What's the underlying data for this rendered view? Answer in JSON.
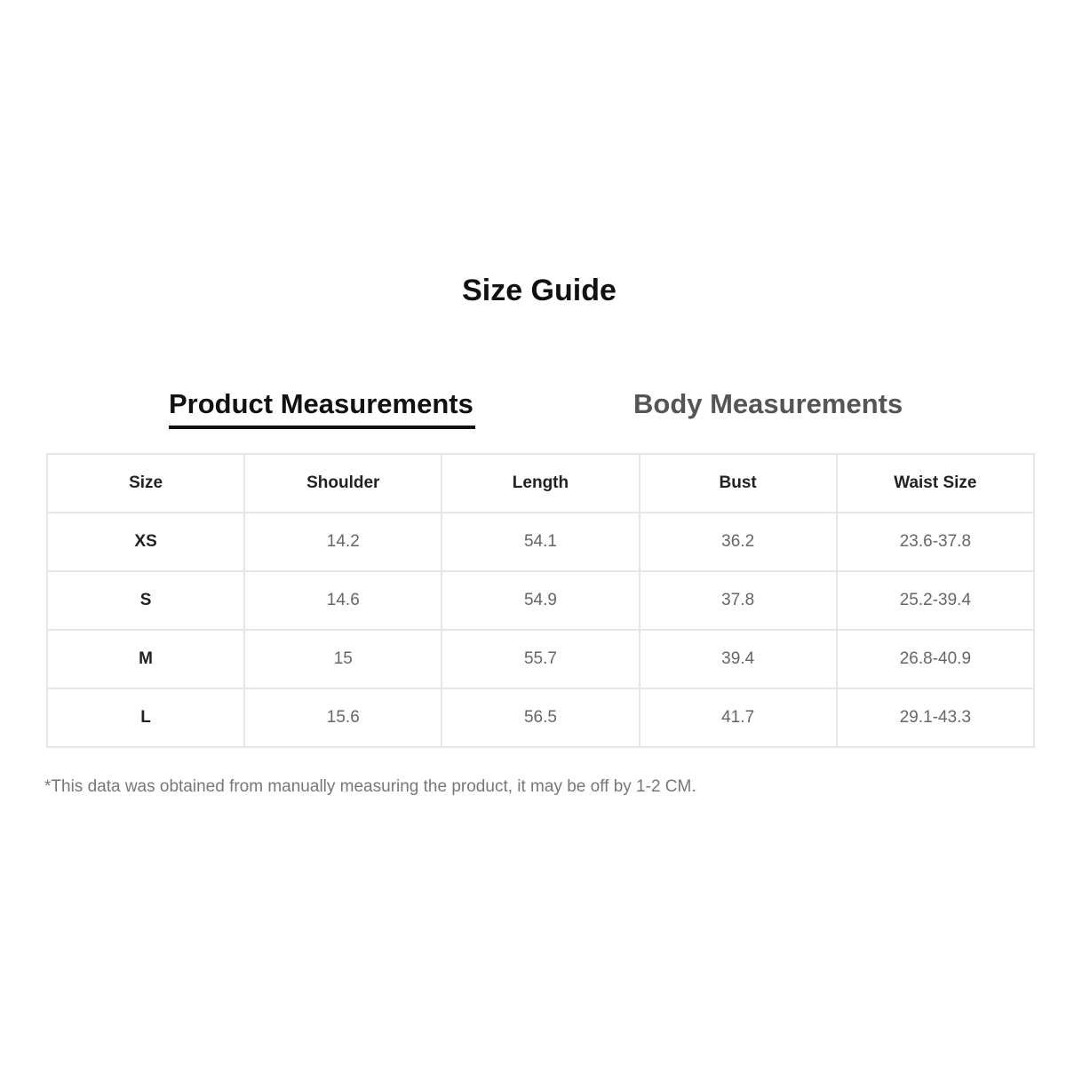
{
  "title": "Size Guide",
  "tabs": [
    {
      "label": "Product Measurements",
      "active": true
    },
    {
      "label": "Body Measurements",
      "active": false
    }
  ],
  "table": {
    "headers": [
      "Size",
      "Shoulder",
      "Length",
      "Bust",
      "Waist Size"
    ],
    "rows": [
      [
        "XS",
        "14.2",
        "54.1",
        "36.2",
        "23.6-37.8"
      ],
      [
        "S",
        "14.6",
        "54.9",
        "37.8",
        "25.2-39.4"
      ],
      [
        "M",
        "15",
        "55.7",
        "39.4",
        "26.8-40.9"
      ],
      [
        "L",
        "15.6",
        "56.5",
        "41.7",
        "29.1-43.3"
      ]
    ]
  },
  "note": "*This data was obtained from manually measuring the product, it may be off by 1-2 CM."
}
